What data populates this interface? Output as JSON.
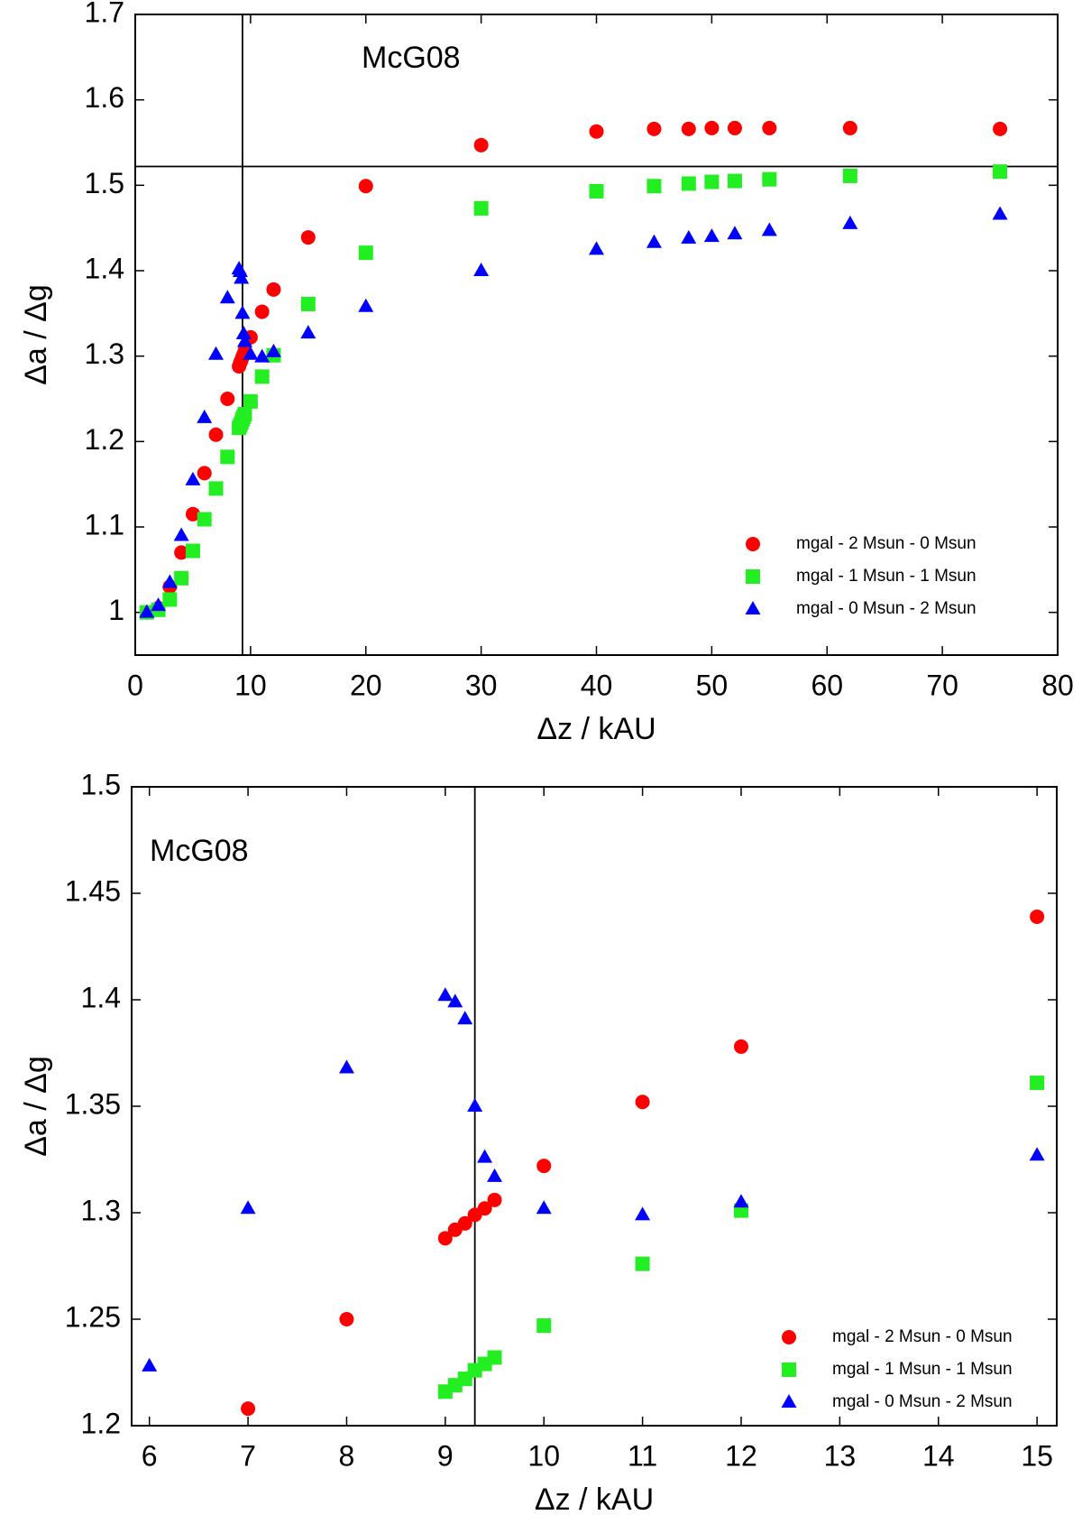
{
  "chart_data": [
    {
      "type": "scatter",
      "annotation": "McG08",
      "x_label": "Δz / kAU",
      "y_label": "Δa / Δg",
      "xlim": [
        0,
        80
      ],
      "ylim": [
        0.95,
        1.7
      ],
      "xticks": [
        0,
        10,
        20,
        30,
        40,
        50,
        60,
        70,
        80
      ],
      "yticks": [
        1,
        1.1,
        1.2,
        1.3,
        1.4,
        1.5,
        1.6,
        1.7
      ],
      "vline": 9.3,
      "hline": 1.522,
      "legend": "lower right",
      "grid": false,
      "series": [
        {
          "name": "mgal - 2 Msun - 0 Msun",
          "color": "#ff0000",
          "marker": "circle",
          "x": [
            1,
            2,
            3,
            4,
            5,
            6,
            7,
            8,
            9,
            9.1,
            9.2,
            9.3,
            9.4,
            9.5,
            10,
            11,
            12,
            15,
            20,
            30,
            40,
            45,
            48,
            50,
            52,
            55,
            62,
            75
          ],
          "values": [
            1.0,
            1.005,
            1.03,
            1.07,
            1.115,
            1.163,
            1.208,
            1.25,
            1.288,
            1.292,
            1.295,
            1.299,
            1.302,
            1.306,
            1.322,
            1.352,
            1.378,
            1.439,
            1.499,
            1.547,
            1.563,
            1.566,
            1.566,
            1.567,
            1.567,
            1.567,
            1.567,
            1.566
          ]
        },
        {
          "name": "mgal - 1 Msun - 1 Msun",
          "color": "#22ee22",
          "marker": "square",
          "x": [
            1,
            2,
            3,
            4,
            5,
            6,
            7,
            8,
            9,
            9.1,
            9.2,
            9.3,
            9.4,
            9.5,
            10,
            11,
            12,
            15,
            20,
            30,
            40,
            45,
            48,
            50,
            52,
            55,
            62,
            75
          ],
          "values": [
            1.0,
            1.003,
            1.015,
            1.04,
            1.072,
            1.109,
            1.145,
            1.182,
            1.216,
            1.219,
            1.222,
            1.226,
            1.229,
            1.232,
            1.247,
            1.276,
            1.301,
            1.361,
            1.421,
            1.473,
            1.493,
            1.499,
            1.502,
            1.504,
            1.505,
            1.507,
            1.511,
            1.516
          ]
        },
        {
          "name": "mgal - 0 Msun - 2 Msun",
          "color": "#0000ff",
          "marker": "triangle",
          "x": [
            1,
            2,
            3,
            4,
            5,
            6,
            7,
            8,
            9,
            9.1,
            9.2,
            9.3,
            9.4,
            9.5,
            10,
            11,
            12,
            15,
            20,
            30,
            40,
            45,
            48,
            50,
            52,
            55,
            62,
            75
          ],
          "values": [
            1.0,
            1.008,
            1.035,
            1.09,
            1.155,
            1.228,
            1.302,
            1.368,
            1.402,
            1.399,
            1.391,
            1.35,
            1.326,
            1.317,
            1.302,
            1.299,
            1.305,
            1.327,
            1.358,
            1.4,
            1.425,
            1.433,
            1.438,
            1.44,
            1.443,
            1.447,
            1.455,
            1.466
          ]
        }
      ]
    },
    {
      "type": "scatter",
      "annotation": "McG08",
      "x_label": "Δz / kAU",
      "y_label": "Δa / Δg",
      "xlim": [
        5.82,
        15.2
      ],
      "ylim": [
        1.2,
        1.5
      ],
      "xticks": [
        6,
        7,
        8,
        9,
        10,
        11,
        12,
        13,
        14,
        15
      ],
      "yticks": [
        1.2,
        1.25,
        1.3,
        1.35,
        1.4,
        1.45,
        1.5
      ],
      "vline": 9.3,
      "legend": "lower right",
      "grid": false,
      "series": [
        {
          "name": "mgal - 2 Msun - 0 Msun",
          "color": "#ff0000",
          "marker": "circle",
          "x": [
            7,
            8,
            9,
            9.1,
            9.2,
            9.3,
            9.4,
            9.5,
            10,
            11,
            12,
            15
          ],
          "values": [
            1.208,
            1.25,
            1.288,
            1.292,
            1.295,
            1.299,
            1.302,
            1.306,
            1.322,
            1.352,
            1.378,
            1.439
          ]
        },
        {
          "name": "mgal - 1 Msun - 1 Msun",
          "color": "#22ee22",
          "marker": "square",
          "x": [
            9,
            9.1,
            9.2,
            9.3,
            9.4,
            9.5,
            10,
            11,
            12,
            15
          ],
          "values": [
            1.216,
            1.219,
            1.222,
            1.226,
            1.229,
            1.232,
            1.247,
            1.276,
            1.301,
            1.361
          ]
        },
        {
          "name": "mgal - 0 Msun - 2 Msun",
          "color": "#0000ff",
          "marker": "triangle",
          "x": [
            6,
            7,
            8,
            9,
            9.1,
            9.2,
            9.3,
            9.4,
            9.5,
            10,
            11,
            12,
            15
          ],
          "values": [
            1.228,
            1.302,
            1.368,
            1.402,
            1.399,
            1.391,
            1.35,
            1.326,
            1.317,
            1.302,
            1.299,
            1.305,
            1.327
          ]
        }
      ]
    }
  ]
}
